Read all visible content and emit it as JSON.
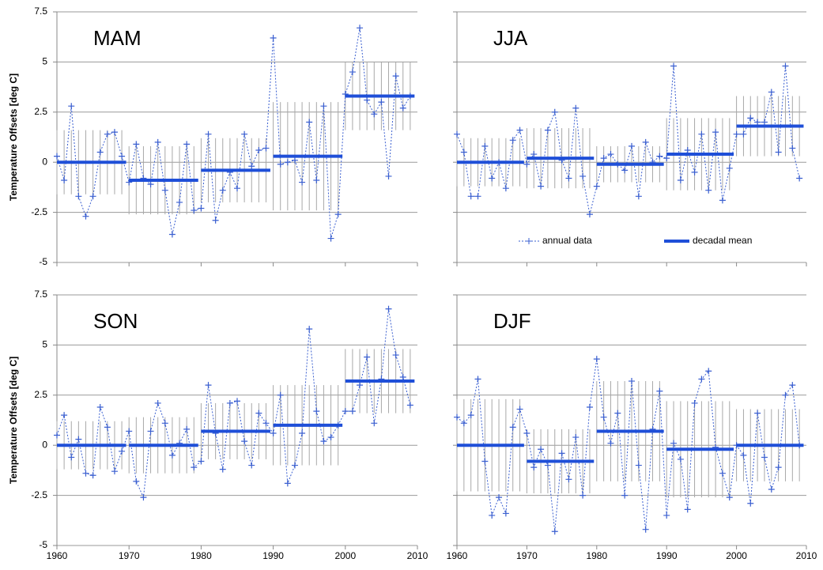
{
  "chart_data": [
    {
      "type": "line",
      "title": "MAM",
      "y_label": "Temperature Offsets [deg C]",
      "xlim": [
        1960,
        2010
      ],
      "xticks": [
        1960,
        1970,
        1980,
        1990,
        2000,
        2010
      ],
      "show_xtick_labels": false,
      "ylim": [
        -5,
        7.5
      ],
      "yticks": [
        -5,
        -2.5,
        0,
        2.5,
        5,
        7.5
      ],
      "show_ytick_labels": true,
      "grid": true,
      "x": [
        1960,
        1961,
        1962,
        1963,
        1964,
        1965,
        1966,
        1967,
        1968,
        1969,
        1970,
        1971,
        1972,
        1973,
        1974,
        1975,
        1976,
        1977,
        1978,
        1979,
        1980,
        1981,
        1982,
        1983,
        1984,
        1985,
        1986,
        1987,
        1988,
        1989,
        1990,
        1991,
        1992,
        1993,
        1994,
        1995,
        1996,
        1997,
        1998,
        1999,
        2000,
        2001,
        2002,
        2003,
        2004,
        2005,
        2006,
        2007,
        2008,
        2009
      ],
      "series": [
        {
          "color": "#3a5fd0",
          "values": [
            0.3,
            -0.9,
            2.8,
            -1.7,
            -2.7,
            -1.7,
            0.5,
            1.4,
            1.5,
            0.3,
            -1.0,
            0.9,
            -0.8,
            -1.1,
            1.0,
            -1.4,
            -3.6,
            -2.0,
            0.9,
            -2.4,
            -2.3,
            1.4,
            -2.9,
            -1.4,
            -0.5,
            -1.3,
            1.4,
            -0.2,
            0.6,
            0.7,
            6.2,
            -0.1,
            0.0,
            0.1,
            -1.0,
            2.0,
            -0.9,
            2.8,
            -3.8,
            -2.6,
            3.4,
            4.5,
            6.7,
            3.1,
            2.4,
            3.0,
            -0.7,
            4.3,
            2.7,
            3.3
          ]
        },
        {
          "color": "#1f4fd8",
          "x": [
            1960,
            1970,
            1980,
            1990,
            2000
          ],
          "values": [
            0,
            -0.9,
            -0.4,
            0.3,
            3.3
          ],
          "errors": [
            1.6,
            1.7,
            1.6,
            2.7,
            1.7
          ]
        }
      ]
    },
    {
      "type": "line",
      "title": "JJA",
      "xlim": [
        1960,
        2010
      ],
      "xticks": [
        1960,
        1970,
        1980,
        1990,
        2000,
        2010
      ],
      "show_xtick_labels": false,
      "ylim": [
        -5,
        7.5
      ],
      "yticks": [
        -5,
        -2.5,
        0,
        2.5,
        5,
        7.5
      ],
      "show_ytick_labels": false,
      "grid": true,
      "legend": "lower right",
      "x": [
        1960,
        1961,
        1962,
        1963,
        1964,
        1965,
        1966,
        1967,
        1968,
        1969,
        1970,
        1971,
        1972,
        1973,
        1974,
        1975,
        1976,
        1977,
        1978,
        1979,
        1980,
        1981,
        1982,
        1983,
        1984,
        1985,
        1986,
        1987,
        1988,
        1989,
        1990,
        1991,
        1992,
        1993,
        1994,
        1995,
        1996,
        1997,
        1998,
        1999,
        2000,
        2001,
        2002,
        2003,
        2004,
        2005,
        2006,
        2007,
        2008,
        2009
      ],
      "series": [
        {
          "name": "annual data",
          "color": "#3a5fd0",
          "values": [
            1.4,
            0.5,
            -1.7,
            -1.7,
            0.8,
            -0.8,
            0.0,
            -1.3,
            1.1,
            1.6,
            -0.1,
            0.4,
            -1.2,
            1.6,
            2.5,
            0.1,
            -0.8,
            2.7,
            -0.7,
            -2.6,
            -1.2,
            0.2,
            0.4,
            -0.1,
            -0.4,
            0.8,
            -1.7,
            1.0,
            0.0,
            0.3,
            0.2,
            4.8,
            -0.9,
            0.6,
            -0.5,
            1.4,
            -1.4,
            1.5,
            -1.9,
            -0.3,
            1.4,
            1.4,
            2.2,
            2.0,
            2.0,
            3.5,
            0.5,
            4.8,
            0.7,
            -0.8
          ]
        },
        {
          "name": "decadal mean",
          "color": "#1f4fd8",
          "x": [
            1960,
            1970,
            1980,
            1990,
            2000
          ],
          "values": [
            0,
            0.2,
            -0.1,
            0.4,
            1.8
          ],
          "errors": [
            1.2,
            1.5,
            0.9,
            1.8,
            1.5
          ]
        }
      ]
    },
    {
      "type": "line",
      "title": "SON",
      "y_label": "Temperature Offsets [deg C]",
      "xlim": [
        1960,
        2010
      ],
      "xticks": [
        1960,
        1970,
        1980,
        1990,
        2000,
        2010
      ],
      "show_xtick_labels": true,
      "ylim": [
        -5,
        7.5
      ],
      "yticks": [
        -5,
        -2.5,
        0,
        2.5,
        5,
        7.5
      ],
      "show_ytick_labels": true,
      "grid": true,
      "x": [
        1960,
        1961,
        1962,
        1963,
        1964,
        1965,
        1966,
        1967,
        1968,
        1969,
        1970,
        1971,
        1972,
        1973,
        1974,
        1975,
        1976,
        1977,
        1978,
        1979,
        1980,
        1981,
        1982,
        1983,
        1984,
        1985,
        1986,
        1987,
        1988,
        1989,
        1990,
        1991,
        1992,
        1993,
        1994,
        1995,
        1996,
        1997,
        1998,
        1999,
        2000,
        2001,
        2002,
        2003,
        2004,
        2005,
        2006,
        2007,
        2008,
        2009
      ],
      "series": [
        {
          "color": "#3a5fd0",
          "values": [
            0.5,
            1.5,
            -0.6,
            0.3,
            -1.4,
            -1.5,
            1.9,
            0.9,
            -1.3,
            -0.3,
            0.7,
            -1.8,
            -2.6,
            0.7,
            2.1,
            1.1,
            -0.5,
            0.1,
            0.8,
            -1.1,
            -0.8,
            3.0,
            0.6,
            -1.2,
            2.1,
            2.2,
            0.2,
            -1.0,
            1.6,
            1.1,
            0.6,
            2.5,
            -1.9,
            -1.0,
            0.6,
            5.8,
            1.7,
            0.2,
            0.4,
            1.0,
            1.7,
            1.7,
            3.0,
            4.4,
            1.1,
            3.3,
            6.8,
            4.5,
            3.4,
            2.0
          ]
        },
        {
          "color": "#1f4fd8",
          "x": [
            1960,
            1970,
            1980,
            1990,
            2000
          ],
          "values": [
            0,
            0,
            0.7,
            1.0,
            3.2
          ],
          "errors": [
            1.2,
            1.4,
            1.4,
            2.0,
            1.6
          ]
        }
      ]
    },
    {
      "type": "line",
      "title": "DJF",
      "xlim": [
        1960,
        2010
      ],
      "xticks": [
        1960,
        1970,
        1980,
        1990,
        2000,
        2010
      ],
      "show_xtick_labels": true,
      "ylim": [
        -5,
        7.5
      ],
      "yticks": [
        -5,
        -2.5,
        0,
        2.5,
        5,
        7.5
      ],
      "show_ytick_labels": false,
      "grid": true,
      "x": [
        1960,
        1961,
        1962,
        1963,
        1964,
        1965,
        1966,
        1967,
        1968,
        1969,
        1970,
        1971,
        1972,
        1973,
        1974,
        1975,
        1976,
        1977,
        1978,
        1979,
        1980,
        1981,
        1982,
        1983,
        1984,
        1985,
        1986,
        1987,
        1988,
        1989,
        1990,
        1991,
        1992,
        1993,
        1994,
        1995,
        1996,
        1997,
        1998,
        1999,
        2000,
        2001,
        2002,
        2003,
        2004,
        2005,
        2006,
        2007,
        2008,
        2009
      ],
      "series": [
        {
          "color": "#3a5fd0",
          "values": [
            1.4,
            1.1,
            1.5,
            3.3,
            -0.8,
            -3.5,
            -2.6,
            -3.4,
            0.9,
            1.8,
            0.6,
            -1.1,
            -0.2,
            -1.0,
            -4.3,
            -0.4,
            -1.7,
            0.4,
            -2.5,
            1.9,
            4.3,
            1.4,
            0.1,
            1.6,
            -2.5,
            3.2,
            -1.0,
            -4.2,
            0.8,
            2.7,
            -3.5,
            0.1,
            -0.7,
            -3.2,
            2.1,
            3.3,
            3.7,
            -0.1,
            -1.4,
            -2.6,
            0.0,
            -0.5,
            -2.9,
            1.6,
            -0.6,
            -2.2,
            -1.1,
            2.5,
            3.0,
            0.0
          ]
        },
        {
          "color": "#1f4fd8",
          "x": [
            1960,
            1970,
            1980,
            1990,
            2000
          ],
          "values": [
            0,
            -0.8,
            0.7,
            -0.2,
            0
          ],
          "errors": [
            2.3,
            1.6,
            2.5,
            2.4,
            1.8
          ]
        }
      ]
    }
  ]
}
